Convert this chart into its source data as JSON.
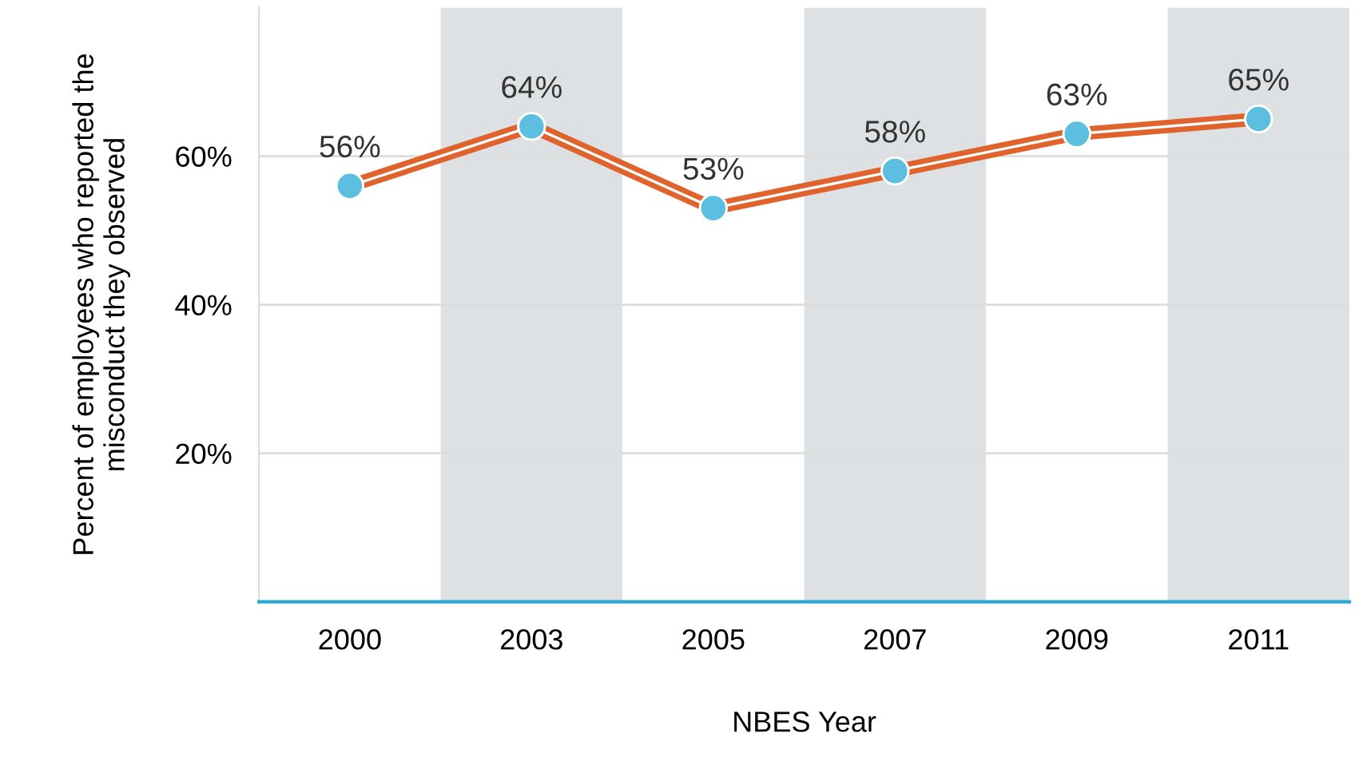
{
  "chart_data": {
    "type": "line",
    "xlabel": "NBES Year",
    "ylabel": "Percent of employees who reported the\nmisconduct they observed",
    "categories": [
      "2000",
      "2003",
      "2005",
      "2007",
      "2009",
      "2011"
    ],
    "series": [
      {
        "color": "#e0622c",
        "values": [
          56,
          64,
          53,
          58,
          63,
          65
        ],
        "value_labels": [
          "56%",
          "64%",
          "53%",
          "58%",
          "63%",
          "65%"
        ]
      }
    ],
    "ylim": [
      0,
      80
    ],
    "yticks": [
      {
        "value": 20,
        "label": "20%"
      },
      {
        "value": 40,
        "label": "40%"
      },
      {
        "value": 60,
        "label": "60%"
      }
    ],
    "grid": "y",
    "marker": "circle",
    "line_style": "solid",
    "bands": [
      {
        "axis": "x",
        "from": "2003",
        "to": "2003",
        "color": "#dde1e4"
      },
      {
        "axis": "x",
        "from": "2007",
        "to": "2007",
        "color": "#dde1e4"
      },
      {
        "axis": "x",
        "from": "2011",
        "to": "2011",
        "color": "#dde1e4"
      }
    ]
  }
}
